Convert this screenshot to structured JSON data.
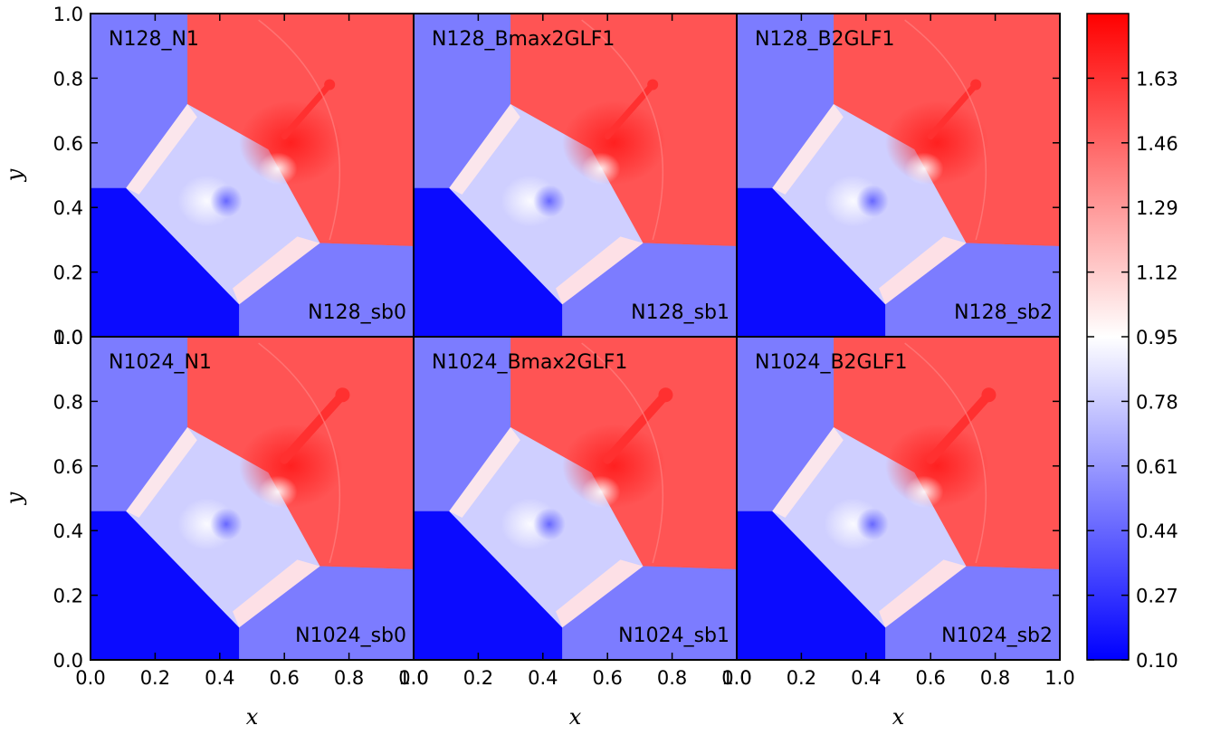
{
  "chart_data": {
    "type": "heatmap",
    "xlabel": "x",
    "ylabel": "y",
    "xlim": [
      0.0,
      1.0
    ],
    "ylim": [
      0.0,
      1.0
    ],
    "x_ticks": [
      "0.0",
      "0.2",
      "0.4",
      "0.6",
      "0.8",
      "1.0"
    ],
    "y_ticks": [
      "0.0",
      "0.2",
      "0.4",
      "0.6",
      "0.8",
      "1.0"
    ],
    "colormap": "bwr",
    "colorbar": {
      "min": 0.1,
      "max": 1.8,
      "ticks": [
        "0.10",
        "0.27",
        "0.44",
        "0.61",
        "0.78",
        "0.95",
        "1.12",
        "1.29",
        "1.46",
        "1.63"
      ],
      "tick_values": [
        0.1,
        0.27,
        0.44,
        0.61,
        0.78,
        0.95,
        1.12,
        1.29,
        1.46,
        1.63
      ]
    },
    "field_regions": {
      "top_left": 0.5,
      "top_right": 1.5,
      "bottom_left": 0.138,
      "bottom_right": 0.5
    },
    "panels": [
      {
        "name": "N128_N1",
        "label": "N128_sb0",
        "row": 0,
        "col": 0
      },
      {
        "name": "N128_Bmax2GLF1",
        "label": "N128_sb1",
        "row": 0,
        "col": 1
      },
      {
        "name": "N128_B2GLF1",
        "label": "N128_sb2",
        "row": 0,
        "col": 2
      },
      {
        "name": "N1024_N1",
        "label": "N1024_sb0",
        "row": 1,
        "col": 0
      },
      {
        "name": "N1024_Bmax2GLF1",
        "label": "N1024_sb1",
        "row": 1,
        "col": 1
      },
      {
        "name": "N1024_B2GLF1",
        "label": "N1024_sb2",
        "row": 1,
        "col": 2
      }
    ]
  },
  "colors": {
    "low": "#0000ff",
    "mid": "#ffffff",
    "high": "#ff0000",
    "top_left": "#7c7cff",
    "top_right": "#ff5454",
    "bottom_left": "#0b0bff",
    "bottom_right": "#7c7cff"
  }
}
